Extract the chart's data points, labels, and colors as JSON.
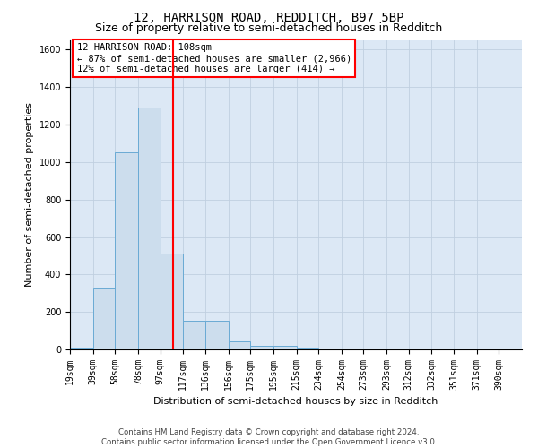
{
  "title": "12, HARRISON ROAD, REDDITCH, B97 5BP",
  "subtitle": "Size of property relative to semi-detached houses in Redditch",
  "xlabel": "Distribution of semi-detached houses by size in Redditch",
  "ylabel": "Number of semi-detached properties",
  "footer_line1": "Contains HM Land Registry data © Crown copyright and database right 2024.",
  "footer_line2": "Contains public sector information licensed under the Open Government Licence v3.0.",
  "annotation_title": "12 HARRISON ROAD: 108sqm",
  "annotation_line1": "← 87% of semi-detached houses are smaller (2,966)",
  "annotation_line2": "12% of semi-detached houses are larger (414) →",
  "property_size": 108,
  "bin_edges": [
    19,
    39,
    58,
    78,
    97,
    117,
    136,
    156,
    175,
    195,
    215,
    234,
    254,
    273,
    293,
    312,
    332,
    351,
    371,
    390,
    410
  ],
  "bar_values": [
    10,
    330,
    1050,
    1290,
    510,
    155,
    155,
    45,
    20,
    20,
    10,
    0,
    0,
    0,
    0,
    0,
    0,
    0,
    0,
    0
  ],
  "bar_color": "#ccdded",
  "bar_edge_color": "#6aaad4",
  "vline_color": "red",
  "vline_x": 108,
  "annotation_box_color": "red",
  "grid_color": "#c0cfe0",
  "background_color": "#dce8f5",
  "ylim": [
    0,
    1650
  ],
  "yticks": [
    0,
    200,
    400,
    600,
    800,
    1000,
    1200,
    1400,
    1600
  ],
  "title_fontsize": 10,
  "subtitle_fontsize": 9,
  "annotation_fontsize": 7.5,
  "tick_fontsize": 7,
  "ylabel_fontsize": 8,
  "xlabel_fontsize": 8
}
